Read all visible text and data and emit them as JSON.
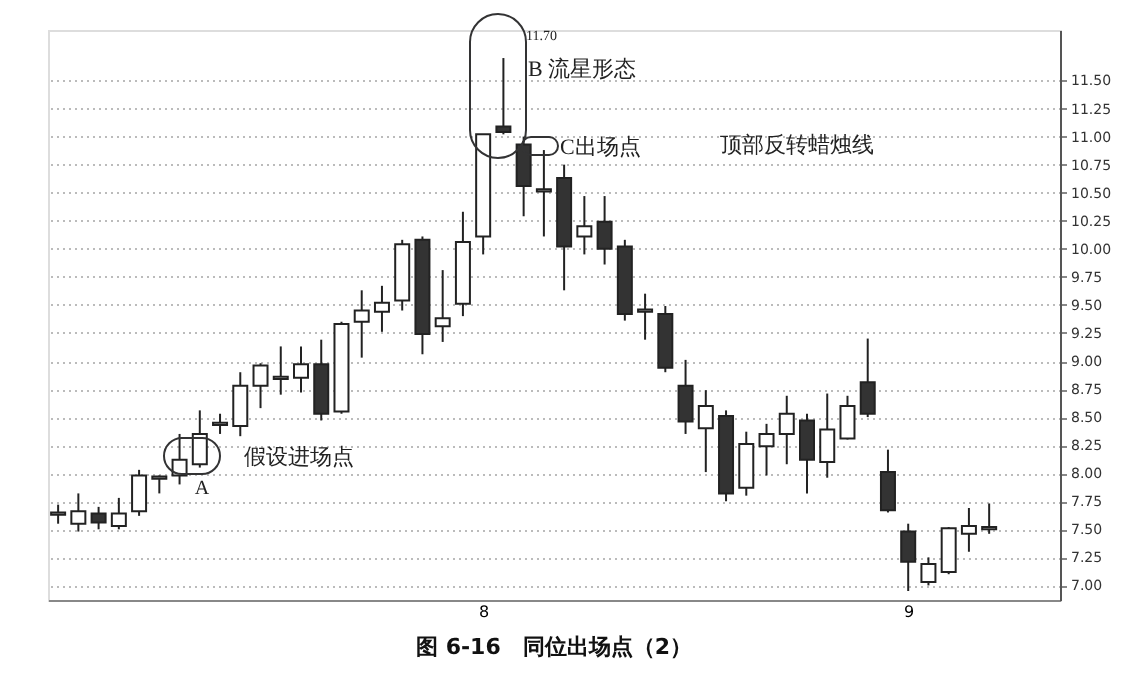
{
  "chart_data": {
    "type": "candlestick",
    "title": "图 6-16　同位出场点（2）",
    "categories": [
      null,
      null,
      null,
      null,
      null,
      null,
      null,
      null,
      null,
      null,
      null,
      null,
      null,
      null,
      null,
      null,
      null,
      null,
      null,
      null,
      null,
      "8",
      null,
      null,
      null,
      null,
      null,
      null,
      null,
      null,
      null,
      null,
      null,
      null,
      null,
      null,
      null,
      null,
      null,
      null,
      null,
      null,
      "9",
      null,
      null,
      null,
      null
    ],
    "ohlc": [
      [
        7.63,
        7.72,
        7.55,
        7.65
      ],
      [
        7.55,
        7.82,
        7.48,
        7.66
      ],
      [
        7.64,
        7.7,
        7.5,
        7.56
      ],
      [
        7.53,
        7.78,
        7.5,
        7.64
      ],
      [
        7.66,
        8.03,
        7.62,
        7.98
      ],
      [
        7.95,
        7.98,
        7.82,
        7.97
      ],
      [
        7.98,
        8.35,
        7.9,
        8.12
      ],
      [
        8.08,
        8.56,
        8.05,
        8.35
      ],
      [
        8.43,
        8.53,
        8.35,
        8.45
      ],
      [
        8.42,
        8.9,
        8.33,
        8.78
      ],
      [
        8.78,
        8.98,
        8.58,
        8.96
      ],
      [
        8.84,
        9.13,
        8.7,
        8.86
      ],
      [
        8.85,
        9.13,
        8.72,
        8.97
      ],
      [
        8.97,
        9.19,
        8.47,
        8.53
      ],
      [
        8.55,
        9.35,
        8.53,
        9.33
      ],
      [
        9.35,
        9.63,
        9.03,
        9.45
      ],
      [
        9.44,
        9.67,
        9.26,
        9.52
      ],
      [
        9.54,
        10.08,
        9.45,
        10.04
      ],
      [
        10.08,
        10.11,
        9.06,
        9.24
      ],
      [
        9.31,
        9.81,
        9.17,
        9.38
      ],
      [
        9.51,
        10.33,
        9.4,
        10.06
      ],
      [
        10.11,
        11.02,
        9.95,
        11.02
      ],
      [
        11.09,
        11.7,
        11.02,
        11.04
      ],
      [
        10.93,
        11.0,
        10.29,
        10.56
      ],
      [
        10.51,
        10.88,
        10.11,
        10.53
      ],
      [
        10.63,
        10.75,
        9.63,
        10.02
      ],
      [
        10.11,
        10.47,
        9.95,
        10.2
      ],
      [
        10.24,
        10.47,
        9.86,
        10.0
      ],
      [
        10.02,
        10.08,
        9.36,
        9.42
      ],
      [
        9.44,
        9.6,
        9.19,
        9.46
      ],
      [
        9.42,
        9.49,
        8.9,
        8.94
      ],
      [
        8.78,
        9.01,
        8.35,
        8.46
      ],
      [
        8.4,
        8.74,
        8.01,
        8.6
      ],
      [
        8.51,
        8.56,
        7.75,
        7.82
      ],
      [
        7.87,
        8.37,
        7.8,
        8.26
      ],
      [
        8.24,
        8.44,
        7.98,
        8.35
      ],
      [
        8.35,
        8.69,
        8.08,
        8.53
      ],
      [
        8.47,
        8.53,
        7.82,
        8.12
      ],
      [
        8.1,
        8.71,
        7.96,
        8.39
      ],
      [
        8.31,
        8.69,
        8.3,
        8.6
      ],
      [
        8.81,
        9.2,
        8.5,
        8.53
      ],
      [
        8.01,
        8.21,
        7.65,
        7.67
      ],
      [
        7.48,
        7.55,
        6.95,
        7.21
      ],
      [
        7.03,
        7.25,
        7.0,
        7.19
      ],
      [
        7.12,
        7.52,
        7.1,
        7.51
      ],
      [
        7.46,
        7.69,
        7.3,
        7.53
      ],
      [
        7.5,
        7.73,
        7.46,
        7.52
      ]
    ],
    "ylim": [
      6.87,
      11.95
    ],
    "yticks": [
      {
        "value": 7,
        "label": "7.00"
      },
      {
        "value": 7.25,
        "label": "7.25"
      },
      {
        "value": 7.5,
        "label": "7.50"
      },
      {
        "value": 7.75,
        "label": "7.75"
      },
      {
        "value": 8,
        "label": "8.00"
      },
      {
        "value": 8.25,
        "label": "8.25"
      },
      {
        "value": 8.5,
        "label": "8.50"
      },
      {
        "value": 8.75,
        "label": "8.75"
      },
      {
        "value": 9,
        "label": "9.00"
      },
      {
        "value": 9.25,
        "label": "9.25"
      },
      {
        "value": 9.5,
        "label": "9.50"
      },
      {
        "value": 9.75,
        "label": "9.75"
      },
      {
        "value": 10,
        "label": "10.00"
      },
      {
        "value": 10.25,
        "label": "10.25"
      },
      {
        "value": 10.5,
        "label": "10.50"
      },
      {
        "value": 10.75,
        "label": "10.75"
      },
      {
        "value": 11,
        "label": "11.00"
      },
      {
        "value": 11.25,
        "label": "11.25"
      },
      {
        "value": 11.5,
        "label": "11.50"
      }
    ],
    "grid": "y",
    "colors": [
      "#ffffff",
      "#ffffff",
      "#333333",
      "#ffffff",
      "#ffffff",
      "#ffffff",
      "#ffffff",
      "#ffffff",
      "#ffffff",
      "#ffffff",
      "#ffffff",
      "#ffffff",
      "#ffffff",
      "#333333",
      "#ffffff",
      "#ffffff",
      "#ffffff",
      "#ffffff",
      "#333333",
      "#ffffff",
      "#ffffff",
      "#ffffff",
      "#333333",
      "#333333",
      "#ffffff",
      "#333333",
      "#ffffff",
      "#333333",
      "#333333",
      "#ffffff",
      "#333333",
      "#333333",
      "#ffffff",
      "#333333",
      "#ffffff",
      "#ffffff",
      "#ffffff",
      "#333333",
      "#ffffff",
      "#ffffff",
      "#333333",
      "#333333",
      "#333333",
      "#ffffff",
      "#ffffff",
      "#ffffff",
      "#ffffff"
    ],
    "annotations": [
      "11.70",
      "B  流星形态",
      "C出场点",
      "顶部反转蜡烛线",
      "假设进场点",
      "A"
    ]
  }
}
